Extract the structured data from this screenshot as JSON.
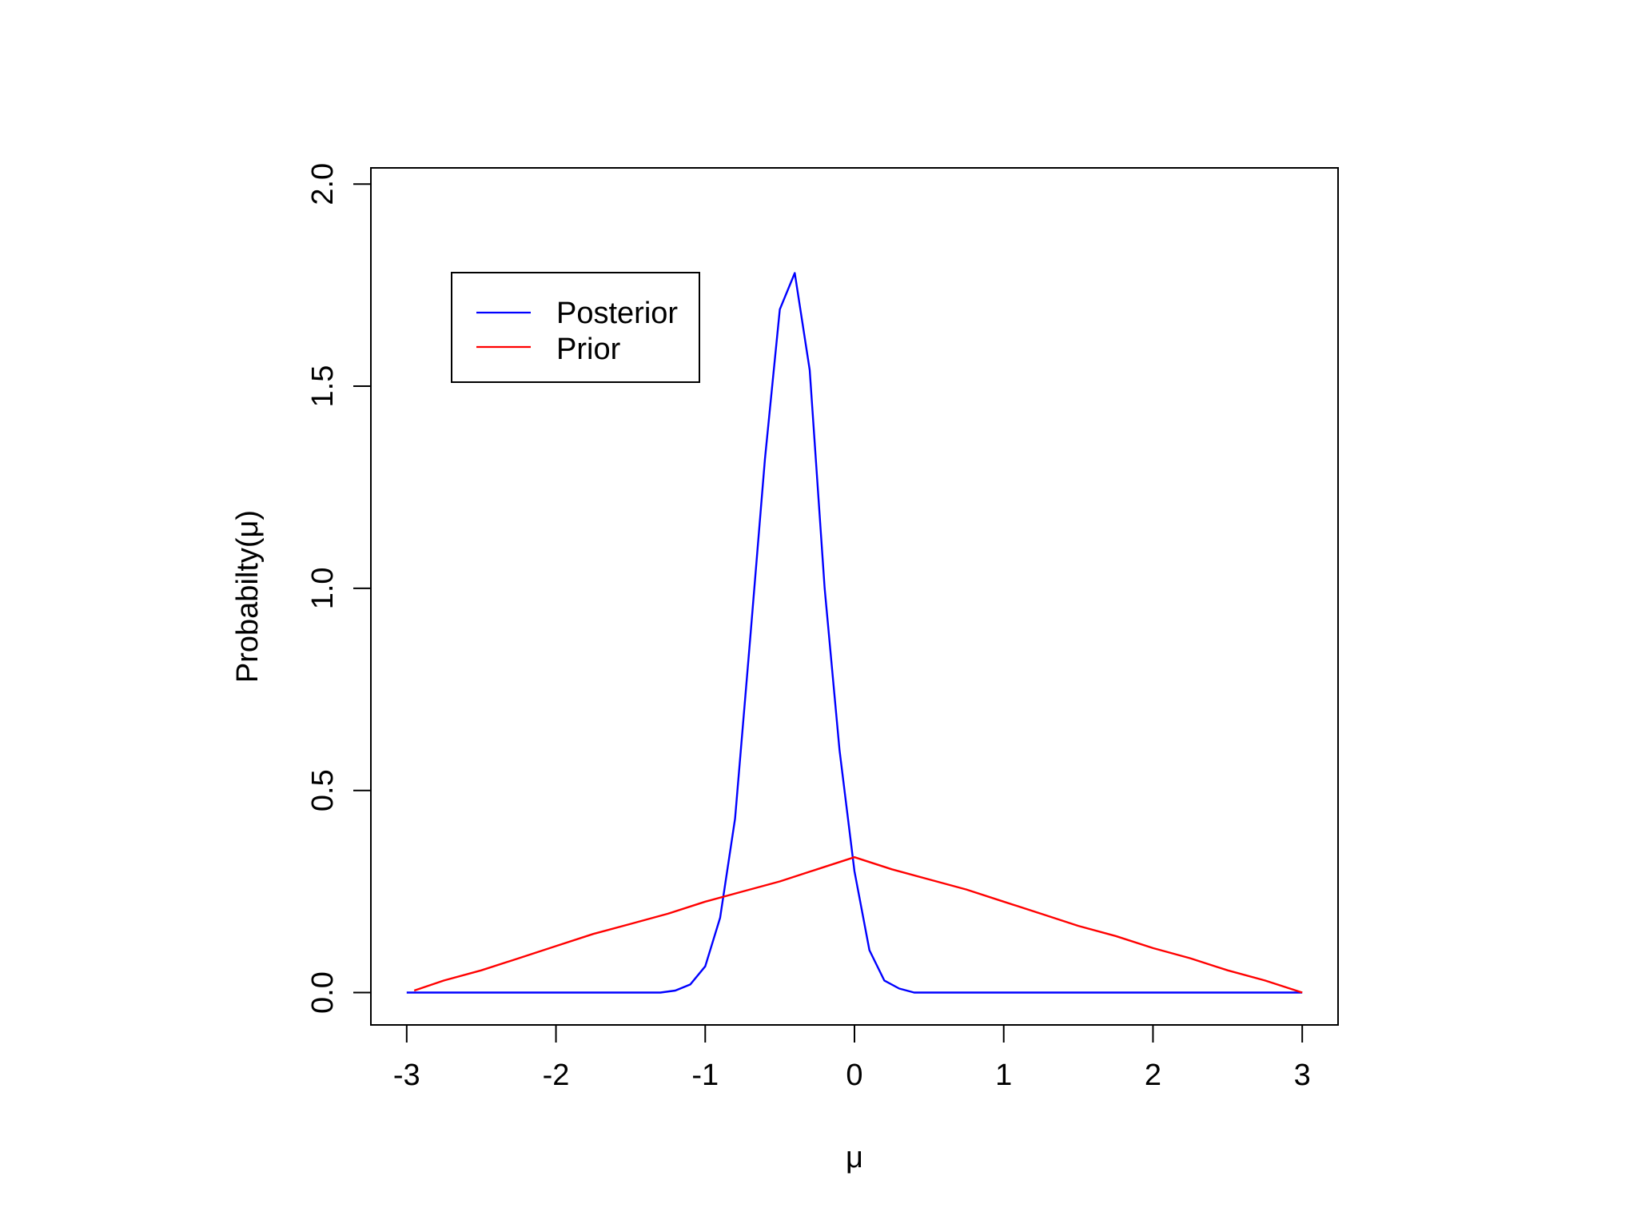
{
  "chart_data": {
    "type": "line",
    "title": "",
    "xlabel": "μ",
    "ylabel": "Probabilty(μ)",
    "xlim": [
      -3.24,
      3.24
    ],
    "ylim": [
      -0.08,
      2.04
    ],
    "x_ticks": [
      -3,
      -2,
      -1,
      0,
      1,
      2,
      3
    ],
    "x_tick_labels": [
      "-3",
      "-2",
      "-1",
      "0",
      "1",
      "2",
      "3"
    ],
    "y_ticks": [
      0.0,
      0.5,
      1.0,
      1.5,
      2.0
    ],
    "y_tick_labels": [
      "0.0",
      "0.5",
      "1.0",
      "1.5",
      "2.0"
    ],
    "grid": false,
    "legend_position": "top-left",
    "series": [
      {
        "name": "Posterior",
        "color": "#0000ff",
        "x": [
          -3.0,
          -2.5,
          -2.0,
          -1.5,
          -1.3,
          -1.2,
          -1.1,
          -1.0,
          -0.9,
          -0.8,
          -0.7,
          -0.6,
          -0.5,
          -0.4,
          -0.3,
          -0.2,
          -0.1,
          0.0,
          0.1,
          0.2,
          0.3,
          0.4,
          0.5,
          1.0,
          1.5,
          2.0,
          2.5,
          3.0
        ],
        "y": [
          0.0,
          0.0,
          0.0,
          0.0,
          0.0,
          0.005,
          0.02,
          0.065,
          0.185,
          0.43,
          0.87,
          1.32,
          1.69,
          1.78,
          1.54,
          1.0,
          0.6,
          0.3,
          0.105,
          0.03,
          0.01,
          0.0,
          0.0,
          0.0,
          0.0,
          0.0,
          0.0,
          0.0
        ]
      },
      {
        "name": "Prior",
        "color": "#ff0000",
        "x": [
          -2.95,
          -2.75,
          -2.5,
          -2.25,
          -2.0,
          -1.75,
          -1.5,
          -1.25,
          -1.0,
          -0.75,
          -0.5,
          -0.25,
          0.0,
          0.25,
          0.5,
          0.75,
          1.0,
          1.25,
          1.5,
          1.75,
          2.0,
          2.25,
          2.5,
          2.75,
          3.0
        ],
        "y": [
          0.005,
          0.03,
          0.055,
          0.085,
          0.115,
          0.145,
          0.17,
          0.195,
          0.225,
          0.25,
          0.275,
          0.305,
          0.335,
          0.305,
          0.28,
          0.255,
          0.225,
          0.195,
          0.165,
          0.14,
          0.11,
          0.085,
          0.055,
          0.03,
          0.0
        ]
      }
    ]
  }
}
